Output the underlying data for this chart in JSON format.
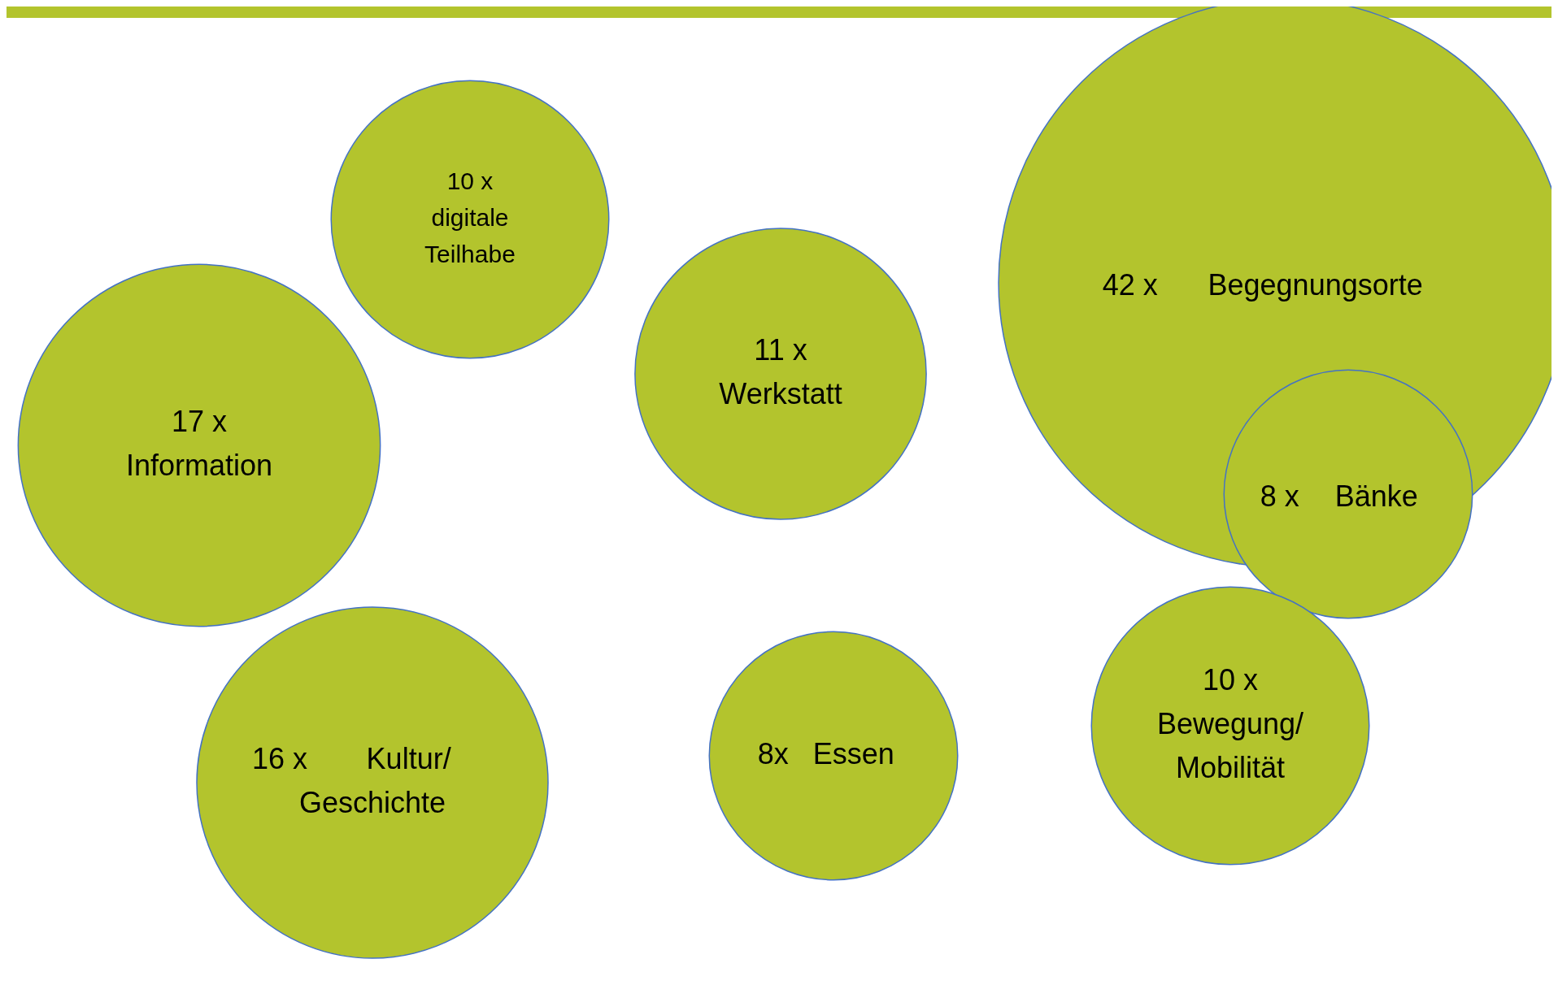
{
  "chart_data": {
    "type": "other",
    "categories": [
      "digitale\nTeilhabe",
      "Information",
      "Werkstatt",
      "Begegnungsorte",
      "Bänke",
      "Kultur/\nGeschichte",
      "Essen",
      "Bewegung/\nMobilität"
    ],
    "values": [
      10,
      17,
      11,
      42,
      8,
      16,
      8,
      10
    ],
    "value_labels": [
      "10 x",
      "17 x",
      "11 x",
      "42 x",
      "8 x",
      "16 x",
      "8x",
      "10 x"
    ],
    "color": "#b3c42d"
  }
}
